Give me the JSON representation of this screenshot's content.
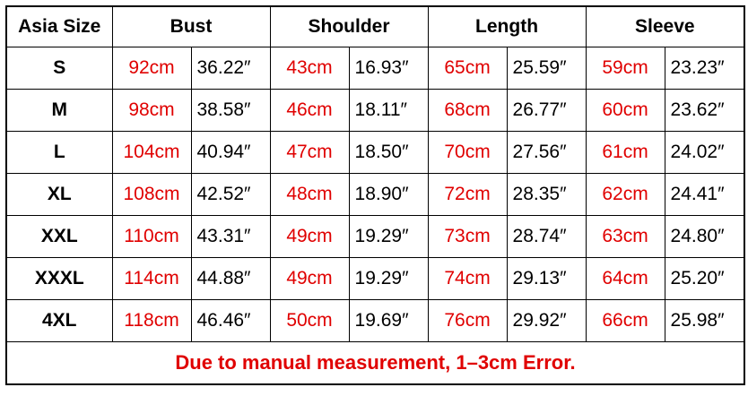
{
  "table": {
    "header": [
      "Asia Size",
      "Bust",
      "Shoulder",
      "Length",
      "Sleeve"
    ],
    "rows": [
      [
        "S",
        "92cm",
        "36.22″",
        "43cm",
        "16.93″",
        "65cm",
        "25.59″",
        "59cm",
        "23.23″"
      ],
      [
        "M",
        "98cm",
        "38.58″",
        "46cm",
        "18.11″",
        "68cm",
        "26.77″",
        "60cm",
        "23.62″"
      ],
      [
        "L",
        "104cm",
        "40.94″",
        "47cm",
        "18.50″",
        "70cm",
        "27.56″",
        "61cm",
        "24.02″"
      ],
      [
        "XL",
        "108cm",
        "42.52″",
        "48cm",
        "18.90″",
        "72cm",
        "28.35″",
        "62cm",
        "24.41″"
      ],
      [
        "XXL",
        "110cm",
        "43.31″",
        "49cm",
        "19.29″",
        "73cm",
        "28.74″",
        "63cm",
        "24.80″"
      ],
      [
        "XXXL",
        "114cm",
        "44.88″",
        "49cm",
        "19.29″",
        "74cm",
        "29.13″",
        "64cm",
        "25.20″"
      ],
      [
        "4XL",
        "118cm",
        "46.46″",
        "50cm",
        "19.69″",
        "76cm",
        "29.92″",
        "66cm",
        "25.98″"
      ]
    ],
    "footer": "Due to manual measurement, 1–3cm Error."
  }
}
